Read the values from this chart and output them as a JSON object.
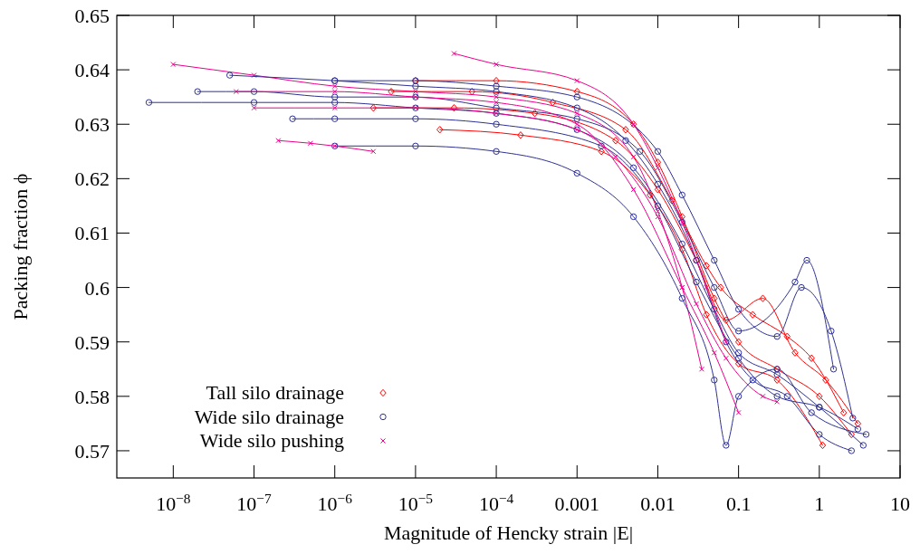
{
  "chart_data": {
    "type": "line",
    "xlabel": "Magnitude of Hencky strain |E|",
    "ylabel": "Packing fraction ϕ",
    "log": "x",
    "legend": "bottom left",
    "xlim": [
      2e-09,
      10
    ],
    "ylim": [
      0.565,
      0.65
    ],
    "xticks": [
      {
        "value": 1e-08,
        "label": "10$^{−8}$"
      },
      {
        "value": 1e-07,
        "label": "10$^{−7}$"
      },
      {
        "value": 1e-06,
        "label": "10$^{−6}$"
      },
      {
        "value": 1e-05,
        "label": "10$^{−5}$"
      },
      {
        "value": 0.0001,
        "label": "10$^{−4}$"
      },
      0.001,
      0.01,
      0.1,
      1,
      10
    ],
    "yticks": [
      0.57,
      0.58,
      0.59,
      0.6,
      0.61,
      0.62,
      0.63,
      0.64,
      0.65
    ],
    "series": [
      {
        "name": "Tall silo drainage",
        "color": "#ff0000",
        "marker": "diamond",
        "x": [
          1e-05,
          0.0001,
          0.001,
          0.005,
          0.01,
          0.02,
          0.05,
          0.1,
          0.3,
          1,
          2.5
        ],
        "values": [
          0.638,
          0.638,
          0.636,
          0.63,
          0.623,
          0.613,
          0.598,
          0.59,
          0.585,
          0.58,
          0.573
        ]
      },
      {
        "name": "Wide silo drainage",
        "color": "#2e3192",
        "marker": "circle",
        "x": [
          5e-09,
          1e-07,
          1e-06,
          1e-05,
          0.0001,
          0.001,
          0.005,
          0.02,
          0.05,
          0.1,
          0.3,
          1,
          3.5
        ],
        "values": [
          0.634,
          0.634,
          0.634,
          0.633,
          0.632,
          0.629,
          0.622,
          0.608,
          0.596,
          0.588,
          0.584,
          0.578,
          0.571
        ]
      },
      {
        "name": "Wide silo pushing",
        "color": "#ec008c",
        "marker": "cross",
        "x": [
          1e-08,
          1e-07,
          1e-06,
          1e-05,
          0.0001,
          0.001,
          0.005,
          0.01,
          0.02,
          0.035
        ],
        "values": [
          0.641,
          0.639,
          0.637,
          0.636,
          0.635,
          0.632,
          0.624,
          0.614,
          0.6,
          0.585
        ]
      },
      {
        "color": "#ff0000",
        "marker": "diamond",
        "x": [
          3e-06,
          3e-05,
          0.0003,
          0.003,
          0.01,
          0.03,
          0.07,
          0.2,
          0.5,
          1.2,
          3
        ],
        "values": [
          0.633,
          0.633,
          0.632,
          0.627,
          0.618,
          0.605,
          0.594,
          0.598,
          0.588,
          0.583,
          0.575
        ]
      },
      {
        "color": "#ff0000",
        "marker": "diamond",
        "x": [
          2e-05,
          0.0002,
          0.002,
          0.008,
          0.02,
          0.04,
          0.1,
          0.3,
          1.1
        ],
        "values": [
          0.629,
          0.628,
          0.625,
          0.617,
          0.607,
          0.595,
          0.586,
          0.583,
          0.571
        ]
      },
      {
        "color": "#ff0000",
        "marker": "diamond",
        "x": [
          5e-06,
          5e-05,
          0.0005,
          0.004,
          0.015,
          0.04,
          0.06,
          0.15,
          0.4,
          0.8,
          2
        ],
        "values": [
          0.636,
          0.636,
          0.634,
          0.629,
          0.616,
          0.604,
          0.6,
          0.595,
          0.591,
          0.587,
          0.577
        ]
      },
      {
        "color": "#2e3192",
        "marker": "circle",
        "x": [
          5e-08,
          1e-06,
          1e-05,
          0.0001,
          0.001,
          0.004,
          0.01,
          0.03,
          0.07,
          0.15,
          0.4,
          1,
          2.5
        ],
        "values": [
          0.639,
          0.638,
          0.637,
          0.636,
          0.633,
          0.627,
          0.619,
          0.605,
          0.59,
          0.583,
          0.58,
          0.573,
          0.57
        ]
      },
      {
        "color": "#2e3192",
        "marker": "circle",
        "x": [
          1e-06,
          1e-05,
          0.0001,
          0.001,
          0.005,
          0.02,
          0.05,
          0.07,
          0.1,
          0.3,
          0.8,
          3.8
        ],
        "values": [
          0.626,
          0.626,
          0.625,
          0.621,
          0.613,
          0.598,
          0.583,
          0.571,
          0.58,
          0.585,
          0.577,
          0.573
        ]
      },
      {
        "color": "#2e3192",
        "marker": "circle",
        "x": [
          2e-08,
          1e-07,
          1e-06,
          1e-05,
          0.0001,
          0.001,
          0.006,
          0.02,
          0.05,
          0.1,
          0.5,
          0.7,
          1.5
        ],
        "values": [
          0.636,
          0.636,
          0.635,
          0.635,
          0.633,
          0.631,
          0.625,
          0.612,
          0.6,
          0.592,
          0.601,
          0.605,
          0.585
        ]
      },
      {
        "color": "#2e3192",
        "marker": "circle",
        "x": [
          3e-07,
          1e-06,
          1e-05,
          0.0001,
          0.002,
          0.01,
          0.03,
          0.1,
          0.3,
          1,
          3
        ],
        "values": [
          0.631,
          0.631,
          0.631,
          0.63,
          0.626,
          0.615,
          0.601,
          0.587,
          0.58,
          0.578,
          0.574
        ]
      },
      {
        "color": "#2e3192",
        "marker": "circle",
        "x": [
          1e-06,
          1e-05,
          0.0001,
          0.001,
          0.01,
          0.02,
          0.05,
          0.1,
          0.3,
          0.6,
          1.4,
          2.6
        ],
        "values": [
          0.638,
          0.638,
          0.637,
          0.635,
          0.625,
          0.617,
          0.605,
          0.596,
          0.591,
          0.6,
          0.592,
          0.576
        ]
      },
      {
        "color": "#ec008c",
        "marker": "cross",
        "x": [
          6e-08,
          1e-06,
          1e-05,
          0.0001,
          0.001,
          0.005,
          0.02,
          0.05,
          0.1
        ],
        "values": [
          0.636,
          0.636,
          0.635,
          0.634,
          0.63,
          0.618,
          0.6,
          0.588,
          0.577
        ]
      },
      {
        "color": "#ec008c",
        "marker": "cross",
        "x": [
          1e-07,
          1e-06,
          1e-05,
          0.0001,
          0.001,
          0.003,
          0.01,
          0.03,
          0.07,
          0.2,
          0.3
        ],
        "values": [
          0.633,
          0.633,
          0.633,
          0.632,
          0.629,
          0.624,
          0.613,
          0.597,
          0.587,
          0.58,
          0.579
        ]
      },
      {
        "color": "#ec008c",
        "marker": "cross",
        "x": [
          3e-05,
          0.0001,
          0.001,
          0.005,
          0.01,
          0.02,
          0.04,
          0.07
        ],
        "values": [
          0.643,
          0.641,
          0.638,
          0.63,
          0.622,
          0.612,
          0.6,
          0.59
        ]
      },
      {
        "color": "#ec008c",
        "marker": "cross",
        "x": [
          2e-07,
          5e-07,
          1e-06,
          3e-06
        ],
        "values": [
          0.627,
          0.6265,
          0.626,
          0.625
        ]
      }
    ]
  }
}
